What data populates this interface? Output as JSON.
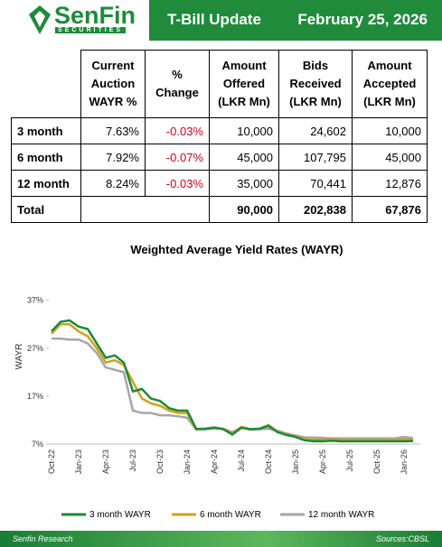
{
  "header": {
    "logo": "SenFin",
    "logo_sub": "SECURITIES",
    "title": "T-Bill Update",
    "date": "February 25, 2026"
  },
  "table": {
    "columns": [
      "Current\nAuction\nWAYR %",
      "%\nChange",
      "Amount\nOffered\n(LKR Mn)",
      "Bids\nReceived\n(LKR Mn)",
      "Amount\nAccepted\n(LKR Mn)"
    ],
    "rows": [
      [
        "3 month",
        "7.63%",
        "-0.03%",
        "10,000",
        "24,602",
        "10,000"
      ],
      [
        "6 month",
        "7.92%",
        "-0.07%",
        "45,000",
        "107,795",
        "45,000"
      ],
      [
        "12 month",
        "8.24%",
        "-0.03%",
        "35,000",
        "70,441",
        "12,876"
      ]
    ],
    "total": {
      "label": "Total",
      "values": [
        "90,000",
        "202,838",
        "67,876"
      ]
    }
  },
  "chart_data": {
    "type": "line",
    "title": "Weighted Average Yield Rates (WAYR)",
    "y_label": "WAYR",
    "categories": [
      "Oct-22",
      null,
      null,
      "Jan-23",
      null,
      null,
      "Apr-23",
      null,
      null,
      "Jul-23",
      null,
      null,
      "Oct-23",
      null,
      null,
      "Jan-24",
      null,
      null,
      "Apr-24",
      null,
      null,
      "Jul-24",
      null,
      null,
      "Oct-24",
      null,
      null,
      "Jan-25",
      null,
      null,
      "Apr-25",
      null,
      null,
      "Jul-25",
      null,
      null,
      "Oct-25",
      null,
      null,
      "Jan-26",
      null
    ],
    "ylim": [
      7,
      39
    ],
    "yticks": [
      {
        "value": 7,
        "label": "7%"
      },
      {
        "value": 17,
        "label": "17%"
      },
      {
        "value": 27,
        "label": "27%"
      },
      {
        "value": 37,
        "label": "37%"
      }
    ],
    "series": [
      {
        "name": "3 month WAYR",
        "color": "#1a8a3a",
        "values": [
          30.5,
          32.5,
          32.8,
          31.5,
          31,
          28,
          25,
          25.5,
          24,
          18,
          18.5,
          16.5,
          16,
          14.5,
          14,
          14,
          10.2,
          10.1,
          10.4,
          10.1,
          9.0,
          10.4,
          10.1,
          10.2,
          10.8,
          9.5,
          8.9,
          8.5,
          7.8,
          7.6,
          7.6,
          7.7,
          7.6,
          7.6,
          7.6,
          7.6,
          7.6,
          7.6,
          7.6,
          7.6,
          7.63
        ]
      },
      {
        "name": "6 month WAYR",
        "color": "#d4a017",
        "values": [
          30,
          32,
          32,
          30.5,
          29.5,
          27,
          24,
          24.5,
          23.5,
          20,
          16.5,
          15.5,
          15,
          14,
          13.5,
          13.5,
          10.0,
          10.2,
          10.3,
          10.2,
          9.2,
          10.6,
          10.1,
          10.2,
          11.0,
          9.6,
          9.0,
          8.6,
          8.0,
          7.9,
          7.9,
          8.0,
          7.9,
          7.9,
          7.9,
          7.9,
          7.9,
          7.9,
          7.9,
          8.0,
          7.92
        ]
      },
      {
        "name": "12 month WAYR",
        "color": "#a6a6a6",
        "values": [
          29,
          29,
          28.8,
          28.8,
          28,
          26,
          23,
          22.5,
          22,
          14,
          13.5,
          13.5,
          13,
          13,
          12.8,
          12.5,
          10.1,
          10.3,
          10.5,
          10.2,
          9.5,
          10.5,
          10.0,
          10.1,
          10.2,
          9.8,
          9.2,
          8.8,
          8.4,
          8.4,
          8.3,
          8.2,
          8.2,
          8.2,
          8.2,
          8.2,
          8.2,
          8.2,
          8.2,
          8.5,
          8.24
        ]
      }
    ]
  },
  "footer": {
    "left": "Senfin Research",
    "right": "Sources:CBSL"
  }
}
